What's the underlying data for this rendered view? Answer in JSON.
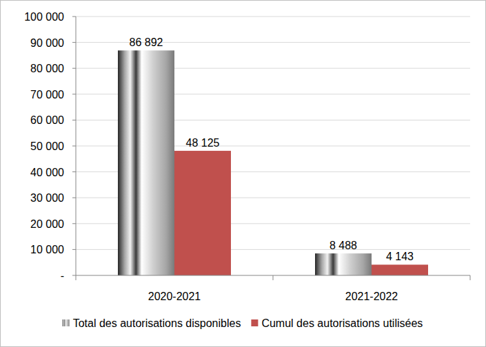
{
  "chart_data": {
    "type": "bar",
    "categories": [
      "2020-2021",
      "2021-2022"
    ],
    "series": [
      {
        "name": "Total des autorisations disponibles",
        "color": "#a6a6a6",
        "values": [
          86892,
          8488
        ],
        "value_labels": [
          "86 892",
          "8 488"
        ]
      },
      {
        "name": "Cumul des autorisations utilisées",
        "color": "#c0504d",
        "values": [
          48125,
          4143
        ],
        "value_labels": [
          "48 125",
          "4 143"
        ]
      }
    ],
    "ylim": [
      0,
      100000
    ],
    "yticks": [
      {
        "value": 0,
        "label": "-"
      },
      {
        "value": 10000,
        "label": "10 000"
      },
      {
        "value": 20000,
        "label": "20 000"
      },
      {
        "value": 30000,
        "label": "30 000"
      },
      {
        "value": 40000,
        "label": "40 000"
      },
      {
        "value": 50000,
        "label": "50 000"
      },
      {
        "value": 60000,
        "label": "60 000"
      },
      {
        "value": 70000,
        "label": "70 000"
      },
      {
        "value": 80000,
        "label": "80 000"
      },
      {
        "value": 90000,
        "label": "90 000"
      },
      {
        "value": 100000,
        "label": "100 000"
      }
    ],
    "grid": true,
    "legend": "bottom",
    "data_labels": true
  }
}
